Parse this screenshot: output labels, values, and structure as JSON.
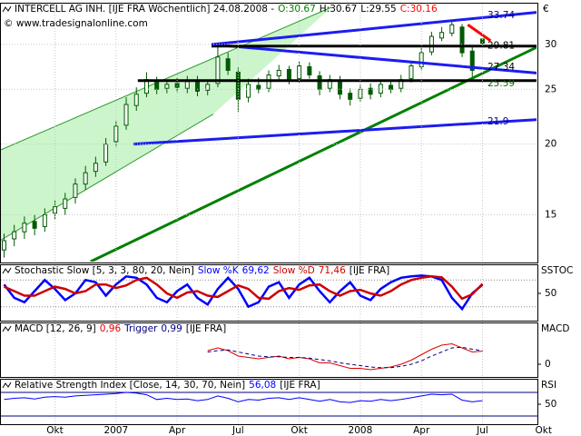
{
  "chart_data": [
    {
      "type": "candlestick",
      "title_parts": [
        {
          "text": "INTERCELL AG INH. [IJE FRA  Wöchentlich] 24.08.2008 -",
          "color": "#000000"
        },
        {
          "text": "O:30.67",
          "color": "#008000"
        },
        {
          "text": "H:30.67",
          "color": "#000000"
        },
        {
          "text": "L:29.55",
          "color": "#000000"
        },
        {
          "text": "C:30.16",
          "color": "#ff0000"
        }
      ],
      "source": "© www.tradesignalonline.com",
      "unit": "€",
      "log_scale": true,
      "grid": true,
      "color": "#005a00",
      "x": [
        -5.5,
        -5,
        -4.5,
        -4,
        -3.5,
        -3,
        -2.5,
        -2,
        -1.5,
        -1,
        -0.5,
        0,
        0.5,
        1,
        1.5,
        2,
        2.5,
        3,
        3.5,
        4,
        4.5,
        5,
        5.5,
        6,
        6.5,
        7,
        7.5,
        8,
        8.5,
        9,
        9.5,
        10,
        10.5,
        11,
        11.5,
        12,
        12.5,
        13,
        13.5,
        14,
        14.5,
        15,
        15.5,
        16,
        16.5,
        17,
        17.5,
        18
      ],
      "open": [
        13.0,
        13.6,
        14.0,
        14.6,
        14.3,
        15.1,
        15.4,
        16.1,
        17.0,
        17.9,
        18.6,
        20.2,
        21.6,
        23.4,
        24.6,
        25.8,
        25.1,
        25.6,
        25.1,
        25.9,
        24.9,
        25.6,
        28.3,
        26.8,
        24.2,
        25.4,
        25.1,
        26.4,
        27.1,
        26.1,
        27.4,
        26.4,
        25.1,
        25.9,
        24.6,
        24.1,
        25.1,
        24.6,
        25.4,
        25.1,
        26.1,
        27.4,
        29.1,
        30.8,
        31.4,
        32.2,
        29.2,
        30.67
      ],
      "high": [
        13.9,
        14.4,
        14.9,
        15.0,
        15.4,
        15.9,
        16.4,
        17.4,
        18.3,
        19.0,
        20.5,
        22.0,
        24.2,
        25.2,
        26.8,
        26.3,
        26.0,
        26.2,
        26.4,
        26.4,
        25.9,
        29.8,
        29.0,
        27.3,
        26.1,
        26.2,
        27.0,
        27.6,
        27.5,
        28.0,
        27.9,
        26.9,
        26.5,
        26.4,
        25.1,
        25.5,
        25.6,
        25.9,
        25.8,
        26.5,
        28.0,
        29.6,
        31.6,
        32.2,
        33.0,
        32.6,
        29.9,
        30.67
      ],
      "low": [
        12.6,
        13.2,
        13.6,
        13.8,
        14.0,
        14.7,
        15.0,
        15.7,
        16.6,
        17.5,
        18.3,
        19.8,
        21.2,
        22.9,
        24.2,
        24.5,
        24.6,
        24.7,
        24.6,
        24.3,
        24.4,
        25.2,
        26.5,
        22.8,
        23.7,
        24.6,
        24.7,
        26.0,
        25.5,
        25.7,
        26.1,
        24.4,
        24.7,
        24.0,
        23.4,
        23.8,
        24.0,
        24.2,
        24.6,
        24.7,
        25.7,
        27.0,
        28.7,
        30.4,
        31.0,
        28.5,
        26.3,
        29.55
      ],
      "close": [
        13.5,
        14.0,
        14.5,
        14.2,
        15.0,
        15.5,
        16.0,
        17.0,
        17.8,
        18.5,
        20.0,
        21.5,
        23.5,
        24.5,
        26.0,
        25.0,
        25.5,
        25.2,
        25.8,
        24.8,
        25.5,
        28.5,
        27.0,
        24.0,
        25.5,
        25.0,
        26.5,
        27.0,
        26.0,
        27.5,
        26.5,
        25.0,
        26.0,
        24.5,
        24.0,
        25.0,
        24.5,
        25.5,
        25.0,
        26.0,
        27.5,
        29.0,
        31.0,
        31.5,
        32.5,
        29.0,
        27.0,
        30.16
      ],
      "xlim": [
        -5.7,
        20.7
      ],
      "xticks": [
        {
          "value": -3,
          "label": "Okt"
        },
        {
          "value": 0,
          "label": "2007"
        },
        {
          "value": 3,
          "label": "Apr"
        },
        {
          "value": 6,
          "label": "Jul"
        },
        {
          "value": 9,
          "label": "Okt"
        },
        {
          "value": 12,
          "label": "2008"
        },
        {
          "value": 15,
          "label": "Apr"
        },
        {
          "value": 18,
          "label": "Jul"
        },
        {
          "value": 21,
          "label": "Okt"
        }
      ],
      "ylim": [
        12.4,
        34.9
      ],
      "yticks": [
        15,
        20,
        25,
        30
      ],
      "channel": {
        "fill": "#ccf5cc",
        "color": "#2e9a2e",
        "upper": {
          "x": [
            -5.71,
            10.58
          ],
          "y": [
            19.5,
            34.9
          ]
        },
        "lower": {
          "x": [
            -5.71,
            4.78
          ],
          "y": [
            13.5,
            22.6
          ]
        }
      },
      "lines": [
        {
          "color": "#008000",
          "x": [
            -1.25,
            20.7
          ],
          "y": [
            12.4,
            29.7
          ]
        },
        {
          "color": "#1c1cf0",
          "x": [
            0.86,
            20.7
          ],
          "y": [
            20.0,
            22.1
          ]
        },
        {
          "color": "#000000",
          "x": [
            1.07,
            20.7
          ],
          "y": [
            25.9,
            25.9
          ]
        },
        {
          "color": "#1c1cf0",
          "x": [
            4.69,
            20.7
          ],
          "y": [
            30.0,
            26.7
          ]
        },
        {
          "color": "#000000",
          "x": [
            4.69,
            20.7
          ],
          "y": [
            29.8,
            29.8
          ]
        },
        {
          "color": "#1c1cf0",
          "x": [
            4.69,
            20.7
          ],
          "y": [
            30.0,
            34.2
          ]
        },
        {
          "color": "#ff0000",
          "x": [
            17.28,
            18.4
          ],
          "y": [
            32.5,
            30.45
          ]
        }
      ],
      "price_labels": [
        {
          "value": 33.74,
          "color": "#000080"
        },
        {
          "value": 29.81,
          "color": "#000000"
        },
        {
          "value": 27.34,
          "color": "#000000"
        },
        {
          "value": 25.59,
          "color": "#006400"
        },
        {
          "value": 21.9,
          "color": "#000080"
        }
      ]
    },
    {
      "type": "line",
      "title": "Stochastic Slow [5, 3, 3, 80, 20, Nein]",
      "instrument": "[IJE FRA]",
      "panel_label": "SSTOC",
      "ylim": [
        -5,
        105
      ],
      "yticks": [
        50
      ],
      "levels": [
        20,
        80
      ],
      "level_style": "dotted",
      "series": [
        {
          "name": "Slow %K",
          "current_label": "69,62",
          "color": "#0000ff",
          "values": [
            70,
            40,
            30,
            55,
            80,
            60,
            35,
            50,
            80,
            75,
            45,
            70,
            88,
            85,
            70,
            40,
            30,
            55,
            70,
            40,
            25,
            60,
            85,
            60,
            20,
            30,
            65,
            75,
            40,
            70,
            85,
            55,
            30,
            55,
            75,
            45,
            35,
            60,
            75,
            85,
            88,
            90,
            88,
            80,
            40,
            15,
            50,
            69.62
          ]
        },
        {
          "name": "Slow %D",
          "current_label": "71,46",
          "color": "#cc0000",
          "values": [
            65,
            55,
            45,
            45,
            55,
            65,
            60,
            50,
            55,
            70,
            70,
            62,
            68,
            80,
            85,
            70,
            50,
            40,
            52,
            55,
            45,
            42,
            55,
            68,
            60,
            40,
            38,
            55,
            62,
            58,
            68,
            70,
            55,
            45,
            55,
            58,
            50,
            45,
            55,
            70,
            80,
            85,
            88,
            86,
            65,
            38,
            48,
            71.46
          ]
        }
      ]
    },
    {
      "type": "line",
      "title": "MACD [12, 26, 9]",
      "instrument": "[IJE FRA]",
      "panel_label": "MACD",
      "ylim": [
        -0.8,
        2.8
      ],
      "yticks": [
        0
      ],
      "series": [
        {
          "current_label": "0,96",
          "color": "#dd0000",
          "dash": false,
          "values": [
            null,
            null,
            null,
            null,
            null,
            null,
            null,
            null,
            null,
            null,
            null,
            null,
            null,
            null,
            null,
            null,
            null,
            null,
            null,
            null,
            1.0,
            1.2,
            1.0,
            0.6,
            0.5,
            0.4,
            0.5,
            0.6,
            0.4,
            0.5,
            0.4,
            0.1,
            0.1,
            -0.1,
            -0.3,
            -0.3,
            -0.4,
            -0.3,
            -0.2,
            0.0,
            0.3,
            0.7,
            1.1,
            1.4,
            1.5,
            1.2,
            0.9,
            0.96
          ]
        },
        {
          "name": "Trigger",
          "current_label": "0,99",
          "color": "#000080",
          "dash": true,
          "values": [
            null,
            null,
            null,
            null,
            null,
            null,
            null,
            null,
            null,
            null,
            null,
            null,
            null,
            null,
            null,
            null,
            null,
            null,
            null,
            null,
            0.9,
            1.0,
            1.05,
            0.9,
            0.75,
            0.6,
            0.55,
            0.55,
            0.5,
            0.5,
            0.45,
            0.35,
            0.25,
            0.1,
            0.0,
            -0.1,
            -0.2,
            -0.25,
            -0.25,
            -0.15,
            0.0,
            0.25,
            0.6,
            0.9,
            1.2,
            1.25,
            1.1,
            0.99
          ]
        }
      ]
    },
    {
      "type": "line",
      "title": "Relative Strength Index [Close, 14, 30, 70, Nein]",
      "instrument": "[IJE FRA]",
      "panel_label": "RSI",
      "ylim": [
        20.8,
        88.5
      ],
      "yticks": [
        50
      ],
      "levels": [
        30,
        70
      ],
      "level_style": "solid",
      "series": [
        {
          "current_label": "56,08",
          "color": "#0000ff",
          "values": [
            58,
            60,
            61,
            59,
            62,
            63,
            62,
            64,
            65,
            66,
            67,
            68,
            70,
            69,
            66,
            58,
            60,
            58,
            59,
            56,
            58,
            64,
            60,
            54,
            58,
            57,
            60,
            61,
            58,
            61,
            58,
            55,
            58,
            54,
            53,
            56,
            55,
            58,
            56,
            58,
            61,
            64,
            67,
            66,
            67,
            57,
            54,
            56.08
          ]
        }
      ]
    }
  ]
}
